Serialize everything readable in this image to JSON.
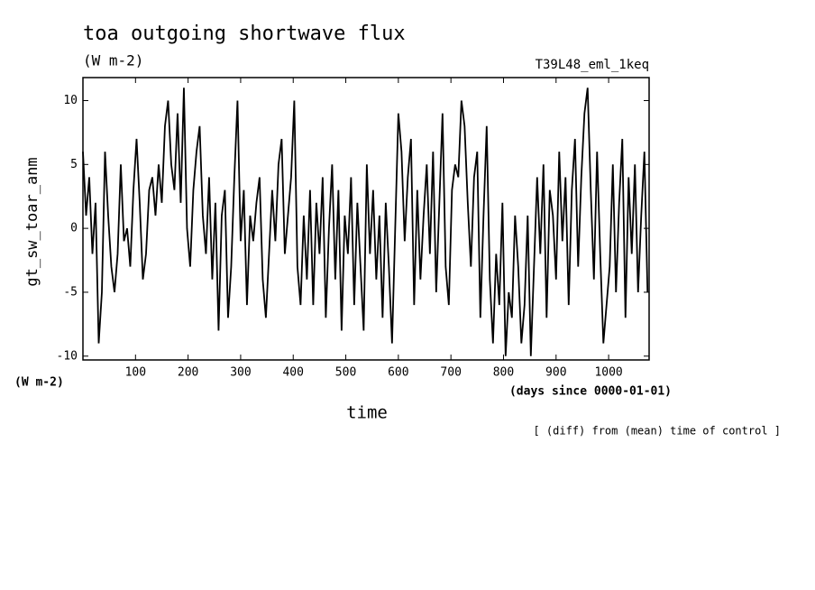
{
  "chart_data": {
    "type": "line",
    "title": "toa outgoing shortwave flux",
    "subtitle": "(W m-2)",
    "annotation": "T39L48_eml_1keq",
    "y_label": "gt_sw_toar_anm",
    "y_unit": "(W m-2)",
    "x_unit": "(days since 0000-01-01)",
    "x_label": "time",
    "footnote": "[ (diff) from (mean) time of control ]",
    "color": "#000000",
    "xlim": [
      0,
      1077
    ],
    "ylim": [
      -10.3,
      11.8
    ],
    "xticks": [
      100,
      200,
      300,
      400,
      500,
      600,
      700,
      800,
      900,
      1000
    ],
    "yticks": [
      -10,
      -5,
      0,
      5,
      10
    ],
    "x": [
      0,
      6,
      12,
      18,
      24,
      30,
      36,
      42,
      48,
      54,
      60,
      66,
      72,
      78,
      84,
      90,
      96,
      102,
      108,
      114,
      120,
      126,
      132,
      138,
      144,
      150,
      156,
      162,
      168,
      174,
      180,
      186,
      192,
      198,
      204,
      210,
      216,
      222,
      228,
      234,
      240,
      246,
      252,
      258,
      264,
      270,
      276,
      282,
      288,
      294,
      300,
      306,
      312,
      318,
      324,
      330,
      336,
      342,
      348,
      354,
      360,
      366,
      372,
      378,
      384,
      390,
      396,
      402,
      408,
      414,
      420,
      426,
      432,
      438,
      444,
      450,
      456,
      462,
      468,
      474,
      480,
      486,
      492,
      498,
      504,
      510,
      516,
      522,
      528,
      534,
      540,
      546,
      552,
      558,
      564,
      570,
      576,
      582,
      588,
      594,
      600,
      606,
      612,
      618,
      624,
      630,
      636,
      642,
      648,
      654,
      660,
      666,
      672,
      678,
      684,
      690,
      696,
      702,
      708,
      714,
      720,
      726,
      732,
      738,
      744,
      750,
      756,
      762,
      768,
      774,
      780,
      786,
      792,
      798,
      804,
      810,
      816,
      822,
      828,
      834,
      840,
      846,
      852,
      858,
      864,
      870,
      876,
      882,
      888,
      894,
      900,
      906,
      912,
      918,
      924,
      930,
      936,
      942,
      948,
      954,
      960,
      966,
      972,
      978,
      984,
      990,
      996,
      1002,
      1008,
      1014,
      1020,
      1026,
      1032,
      1038,
      1044,
      1050,
      1056,
      1062,
      1068,
      1074
    ],
    "values": [
      6,
      1,
      4,
      -2,
      2,
      -9,
      -5,
      6,
      1,
      -3,
      -5,
      -2,
      5,
      -1,
      0,
      -3,
      3,
      7,
      2,
      -4,
      -2,
      3,
      4,
      1,
      5,
      2,
      8,
      10,
      5,
      3,
      9,
      2,
      11,
      0,
      -3,
      3,
      6,
      8,
      1,
      -2,
      4,
      -4,
      2,
      -8,
      1,
      3,
      -7,
      -3,
      4,
      10,
      -1,
      3,
      -6,
      1,
      -1,
      2,
      4,
      -4,
      -7,
      -2,
      3,
      -1,
      5,
      7,
      -2,
      1,
      4,
      10,
      -3,
      -6,
      1,
      -4,
      3,
      -6,
      2,
      -2,
      4,
      -7,
      0,
      5,
      -4,
      3,
      -8,
      1,
      -2,
      4,
      -6,
      2,
      -3,
      -8,
      5,
      -2,
      3,
      -4,
      1,
      -7,
      2,
      -3,
      -9,
      0,
      9,
      6,
      -1,
      4,
      7,
      -6,
      3,
      -4,
      1,
      5,
      -2,
      6,
      -5,
      2,
      9,
      -3,
      -6,
      3,
      5,
      4,
      10,
      8,
      2,
      -3,
      4,
      6,
      -7,
      1,
      8,
      -4,
      -9,
      -2,
      -6,
      2,
      -10,
      -5,
      -7,
      1,
      -3,
      -9,
      -6,
      1,
      -10,
      -3,
      4,
      -2,
      5,
      -7,
      3,
      1,
      -4,
      6,
      -1,
      4,
      -6,
      3,
      7,
      -3,
      4,
      9,
      11,
      3,
      -4,
      6,
      -2,
      -9,
      -6,
      -3,
      5,
      -5,
      2,
      7,
      -7,
      4,
      -2,
      5,
      -5,
      1,
      6,
      -5
    ]
  }
}
